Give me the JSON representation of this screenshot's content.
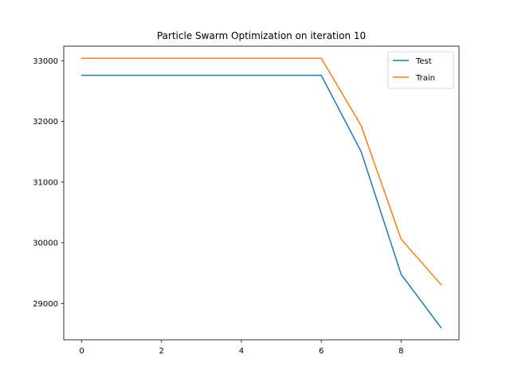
{
  "chart_data": {
    "type": "line",
    "title": "Particle Swarm Optimization on iteration 10",
    "xlabel": "",
    "ylabel": "",
    "x": [
      0,
      1,
      2,
      3,
      4,
      5,
      6,
      7,
      8,
      9
    ],
    "xlim": [
      -0.45,
      9.45
    ],
    "ylim": [
      28400,
      33240
    ],
    "xticks": [
      0,
      2,
      4,
      6,
      8
    ],
    "yticks": [
      29000,
      30000,
      31000,
      32000,
      33000
    ],
    "xtick_labels": [
      "0",
      "2",
      "4",
      "6",
      "8"
    ],
    "ytick_labels": [
      "29000",
      "30000",
      "31000",
      "32000",
      "33000"
    ],
    "grid": false,
    "legend_position": "upper right",
    "series": [
      {
        "name": "Test",
        "color": "#1f77b4",
        "values": [
          32760,
          32760,
          32760,
          32760,
          32760,
          32760,
          32760,
          31500,
          29480,
          28600
        ]
      },
      {
        "name": "Train",
        "color": "#ff7f0e",
        "values": [
          33040,
          33040,
          33040,
          33040,
          33040,
          33040,
          33040,
          31930,
          30060,
          29310
        ]
      }
    ]
  }
}
